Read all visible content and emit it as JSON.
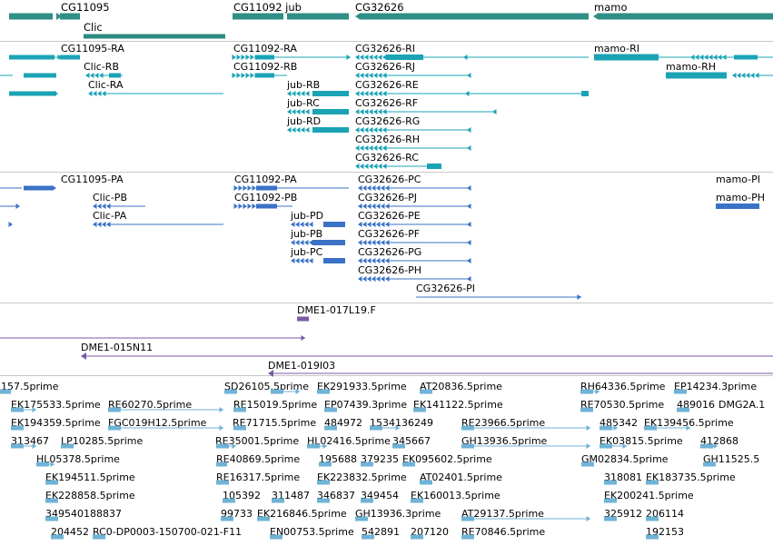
{
  "colors": {
    "gene": "#2e8f86",
    "gene_span": "#2b8a80",
    "transcript": "#1aa3b5",
    "protein": "#3a72c6",
    "clone": "#7a5aa6",
    "est": "#6fb3d6",
    "separator": "#c8c8c8"
  },
  "tracks": {
    "genes": {
      "labels": [
        "CG11095",
        "Clic",
        "CG11092 jub",
        "CG32626",
        "mamo"
      ]
    },
    "transcripts": {
      "labels": [
        "CG11095-RA",
        "Clic-RB",
        "Clic-RA",
        "CG11092-RA",
        "CG11092-RB",
        "jub-RB",
        "jub-RC",
        "jub-RD",
        "CG32626-RI",
        "CG32626-RJ",
        "CG32626-RE",
        "CG32626-RF",
        "CG32626-RG",
        "CG32626-RH",
        "CG32626-RC",
        "mamo-RI",
        "mamo-RH"
      ]
    },
    "proteins": {
      "labels": [
        "CG11095-PA",
        "Clic-PB",
        "Clic-PA",
        "CG11092-PA",
        "CG11092-PB",
        "jub-PD",
        "jub-PB",
        "jub-PC",
        "CG32626-PC",
        "CG32626-PJ",
        "CG32626-PE",
        "CG32626-PF",
        "CG32626-PG",
        "CG32626-PH",
        "CG32626-PI",
        "mamo-PI",
        "mamo-PH"
      ]
    },
    "clones": {
      "labels": [
        "DME1-017L19.F",
        "DME1-015N11",
        "DME1-019I03"
      ]
    },
    "ests": {
      "labels": [
        "157.5prime",
        "SD26105.5prime",
        "EK291933.5prime",
        "AT20836.5prime",
        "RH64336.5prime",
        "EP14234.3prime",
        "EK175533.5prime",
        "RE60270.5prime",
        "RE15019.5prime",
        "EP07439.3prime",
        "EK141122.5prime",
        "RE70530.5prime",
        "489016",
        "DMG2A.1",
        "EK194359.5prime",
        "FGC019H12.5prime",
        "RE71715.5prime",
        "484972",
        "1534136249",
        "RE23966.5prime",
        "485342",
        "EK139456.5prime",
        "313467",
        "LP10285.5prime",
        "RE35001.5prime",
        "HL02416.5prime",
        "345667",
        "GH13936.5prime",
        "EK03815.5prime",
        "412868",
        "HL05378.5prime",
        "RE40869.5prime",
        "195688",
        "379235",
        "EK095602.5prime",
        "GM02834.5prime",
        "GH11525.5",
        "EK194511.5prime",
        "RE16317.5prime",
        "EK223832.5prime",
        "AT02401.5prime",
        "318081",
        "EK183735.5prime",
        "EK228858.5prime",
        "105392",
        "311487",
        "346837",
        "349454",
        "EK160013.5prime",
        "EK200241.5prime",
        "349540188837",
        "99733",
        "EK216846.5prime",
        "GH13936.3prime",
        "AT29137.5prime",
        "325912",
        "206114",
        "204452",
        "RC0-DP0003-150700-021-F11",
        "EN00753.5prime",
        "542891",
        "207120",
        "RE70846.5prime",
        "192153"
      ]
    }
  }
}
